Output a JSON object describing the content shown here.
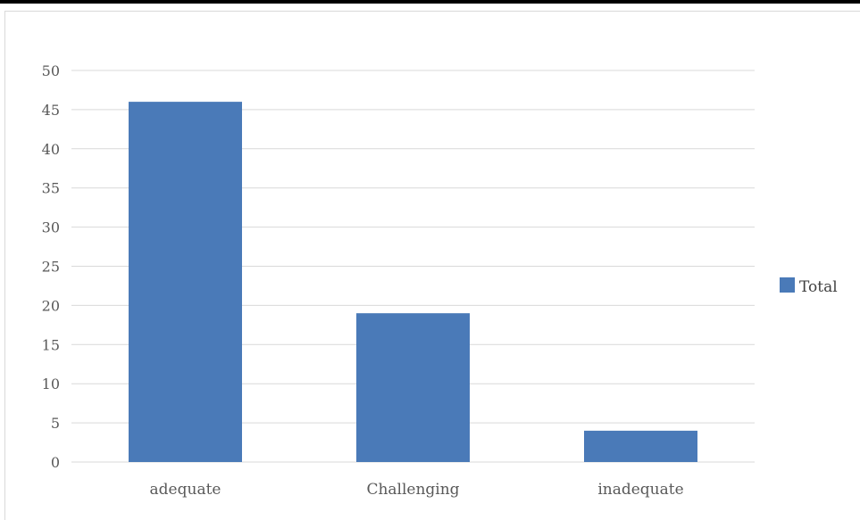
{
  "chart_data": {
    "type": "bar",
    "categories": [
      "adequate",
      "Challenging",
      "inadequate"
    ],
    "series": [
      {
        "name": "Total",
        "values": [
          46,
          19,
          4
        ]
      }
    ],
    "ylim": [
      0,
      50
    ],
    "yticks": [
      "0",
      "5",
      "10",
      "15",
      "20",
      "25",
      "30",
      "35",
      "40",
      "45",
      "50"
    ],
    "grid": true,
    "legend": "right",
    "title": "",
    "xlabel": "",
    "ylabel": "",
    "colors": {
      "bar": "#4a7ab8",
      "grid": "#d9d9d9",
      "axis_text": "#595959"
    }
  }
}
